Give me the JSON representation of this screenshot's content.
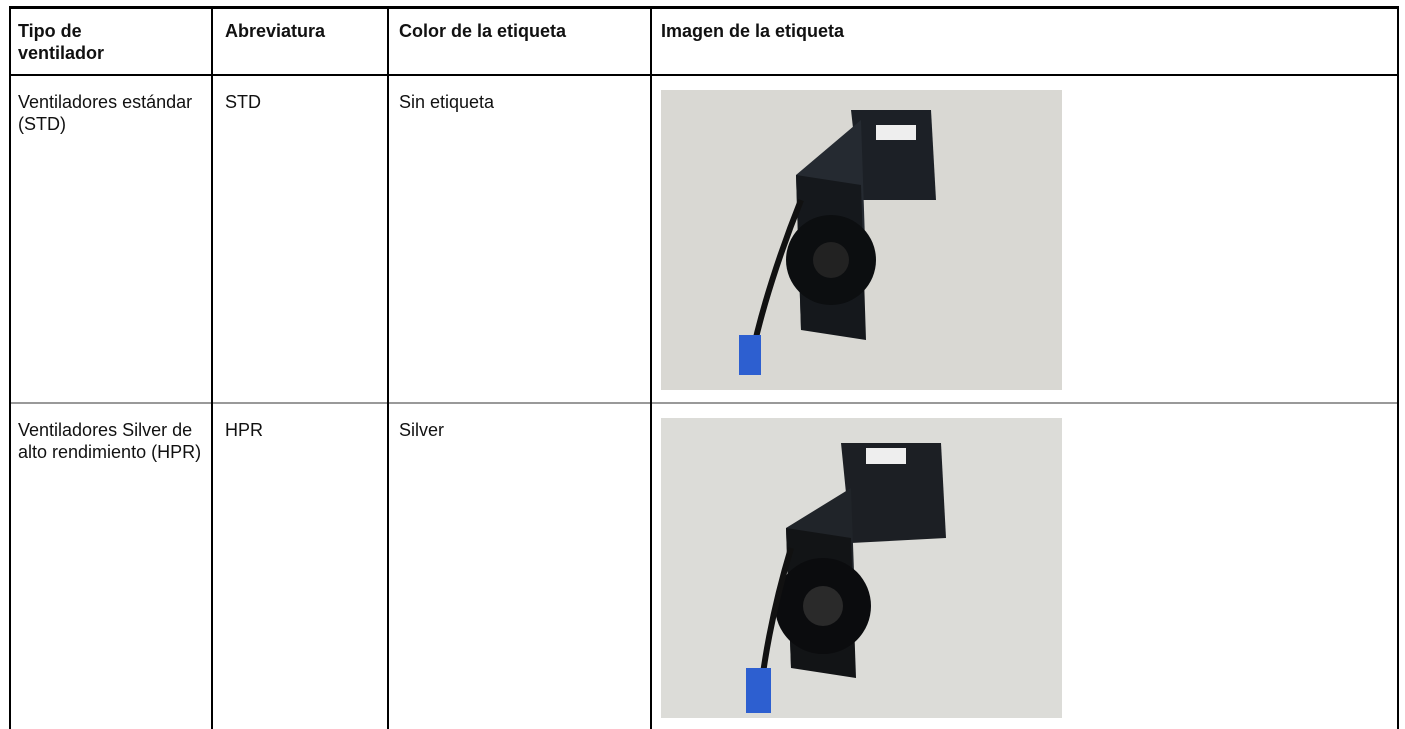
{
  "table": {
    "header": [
      "Tipo de ventilador",
      "Abreviatura",
      "Color de la etiqueta",
      "Imagen de la etiqueta"
    ],
    "rows": [
      [
        "Ventiladores estándar (STD)",
        "STD",
        "Sin etiqueta"
      ],
      [
        "Ventiladores Silver de alto rendimiento (HPR)",
        "HPR",
        "Silver"
      ]
    ]
  }
}
